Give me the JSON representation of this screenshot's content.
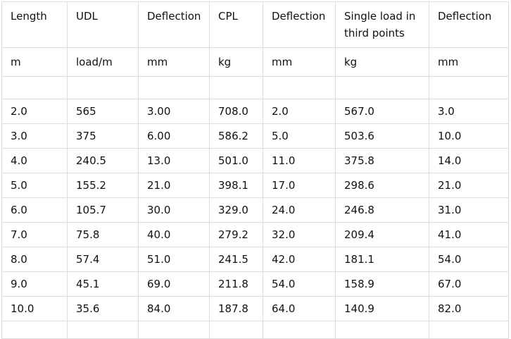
{
  "table": {
    "headers": [
      "Length",
      "UDL",
      "Deflection",
      "CPL",
      "Deflection",
      "Single load in third points",
      "Deflection"
    ],
    "units": [
      "m",
      "load/m",
      "mm",
      "kg",
      "mm",
      "kg",
      "mm"
    ],
    "rows": [
      [
        "2.0",
        "565",
        "3.00",
        "708.0",
        "2.0",
        "567.0",
        "3.0"
      ],
      [
        "3.0",
        "375",
        "6.00",
        "586.2",
        "5.0",
        "503.6",
        "10.0"
      ],
      [
        "4.0",
        "240.5",
        "13.0",
        "501.0",
        "11.0",
        "375.8",
        "14.0"
      ],
      [
        "5.0",
        "155.2",
        "21.0",
        "398.1",
        "17.0",
        "298.6",
        "21.0"
      ],
      [
        "6.0",
        "105.7",
        "30.0",
        "329.0",
        "24.0",
        "246.8",
        "31.0"
      ],
      [
        "7.0",
        "75.8",
        "40.0",
        "279.2",
        "32.0",
        "209.4",
        "41.0"
      ],
      [
        "8.0",
        "57.4",
        "51.0",
        "241.5",
        "42.0",
        "181.1",
        "54.0"
      ],
      [
        "9.0",
        "45.1",
        "69.0",
        "211.8",
        "54.0",
        "158.9",
        "67.0"
      ],
      [
        "10.0",
        "35.6",
        "84.0",
        "187.8",
        "64.0",
        "140.9",
        "82.0"
      ]
    ]
  }
}
